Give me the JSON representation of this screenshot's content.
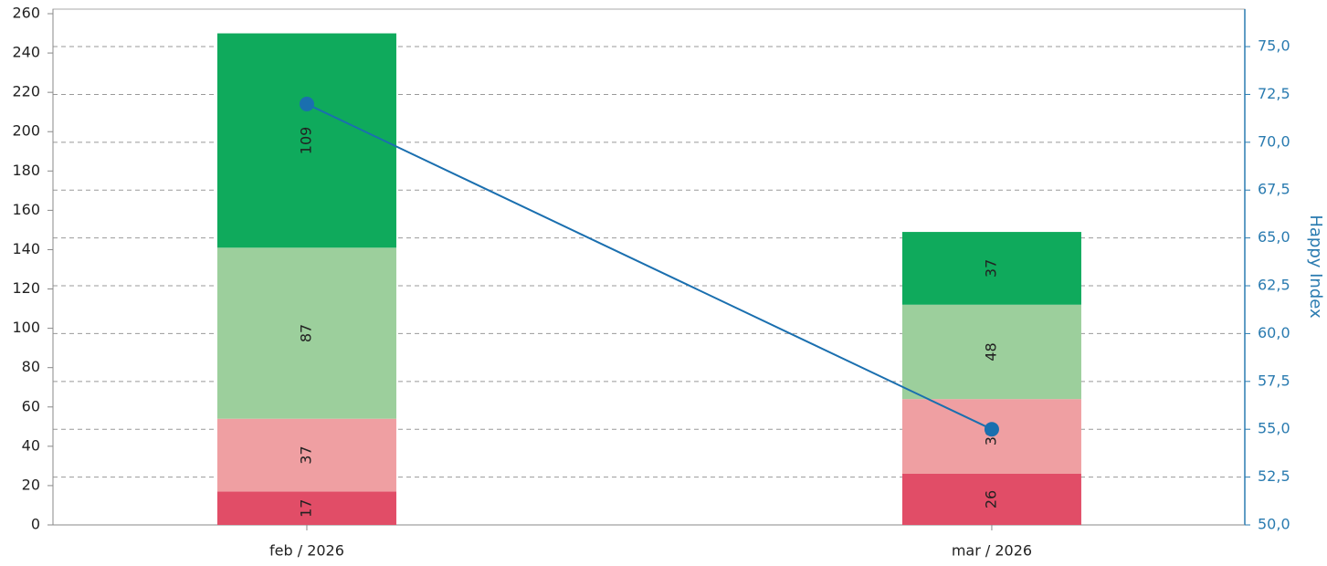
{
  "chart_data": {
    "type": "bar",
    "categories": [
      "feb / 2026",
      "mar / 2026"
    ],
    "series": [
      {
        "color": "#e14d67",
        "values": [
          17,
          26
        ]
      },
      {
        "color": "#ef9fa2",
        "values": [
          37,
          38
        ]
      },
      {
        "color": "#9ccf9c",
        "values": [
          87,
          48
        ]
      },
      {
        "color": "#0faa5c",
        "values": [
          109,
          37
        ]
      },
      {
        "type": "line",
        "axis": "y2",
        "color": "#1a6faf",
        "values": [
          72.0,
          55.0
        ]
      }
    ],
    "stacked": true,
    "ylim": [
      0,
      260
    ],
    "yticks": [
      0,
      20,
      40,
      60,
      80,
      100,
      120,
      140,
      160,
      180,
      200,
      220,
      240,
      260
    ],
    "y2lim": [
      50,
      76.72
    ],
    "y2ticks": [
      {
        "value": 50,
        "label": "50,0"
      },
      {
        "value": 52.5,
        "label": "52,5"
      },
      {
        "value": 55,
        "label": "55,0"
      },
      {
        "value": 57.5,
        "label": "57,5"
      },
      {
        "value": 60,
        "label": "60,0"
      },
      {
        "value": 62.5,
        "label": "62,5"
      },
      {
        "value": 65,
        "label": "65,0"
      },
      {
        "value": 67.5,
        "label": "67,5"
      },
      {
        "value": 70,
        "label": "70,0"
      },
      {
        "value": 72.5,
        "label": "72,5"
      },
      {
        "value": 75,
        "label": "75,0"
      }
    ],
    "y2label": "Happy Index",
    "grid": true
  }
}
